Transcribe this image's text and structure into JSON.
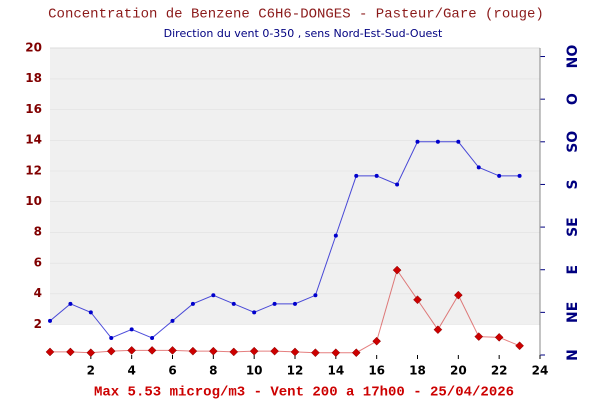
{
  "chart_data": {
    "type": "line",
    "title": "Concentration de Benzene C6H6-DONGES - Pasteur/Gare (rouge)",
    "subtitle": "Direction du vent 0-350 , sens Nord-Est-Sud-Ouest",
    "footer": "Max 5.53 microg/m3 - Vent 200  a 17h00 - 25/04/2026",
    "x": [
      0,
      1,
      2,
      3,
      4,
      5,
      6,
      7,
      8,
      9,
      10,
      11,
      12,
      13,
      14,
      15,
      16,
      17,
      18,
      19,
      20,
      21,
      22,
      23
    ],
    "xlim": [
      0,
      24
    ],
    "xticks": [
      2,
      4,
      6,
      8,
      10,
      12,
      14,
      16,
      18,
      20,
      22,
      24
    ],
    "ylim": [
      0,
      20
    ],
    "yticks": [
      2,
      4,
      6,
      8,
      10,
      12,
      14,
      16,
      18,
      20
    ],
    "y2lim": [
      0,
      360
    ],
    "y2ticks": [
      {
        "value": 0,
        "label": "N"
      },
      {
        "value": 50,
        "label": "NE"
      },
      {
        "value": 100,
        "label": "E"
      },
      {
        "value": 150,
        "label": "SE"
      },
      {
        "value": 200,
        "label": "S"
      },
      {
        "value": 250,
        "label": "SO"
      },
      {
        "value": 300,
        "label": "O"
      },
      {
        "value": 350,
        "label": "NO"
      }
    ],
    "grid": true,
    "series": [
      {
        "color": "#cc0000",
        "values": [
          0.2,
          0.2,
          0.15,
          0.25,
          0.3,
          0.3,
          0.3,
          0.25,
          0.25,
          0.2,
          0.25,
          0.25,
          0.2,
          0.15,
          0.15,
          0.15,
          0.9,
          5.53,
          3.6,
          1.65,
          3.9,
          1.2,
          1.15,
          0.6
        ]
      },
      {
        "color": "#0000cc",
        "axis": "y2",
        "values": [
          40,
          60,
          50,
          20,
          30,
          20,
          40,
          60,
          70,
          60,
          50,
          60,
          60,
          70,
          140,
          210,
          210,
          200,
          250,
          250,
          250,
          220,
          210,
          210
        ]
      }
    ]
  }
}
